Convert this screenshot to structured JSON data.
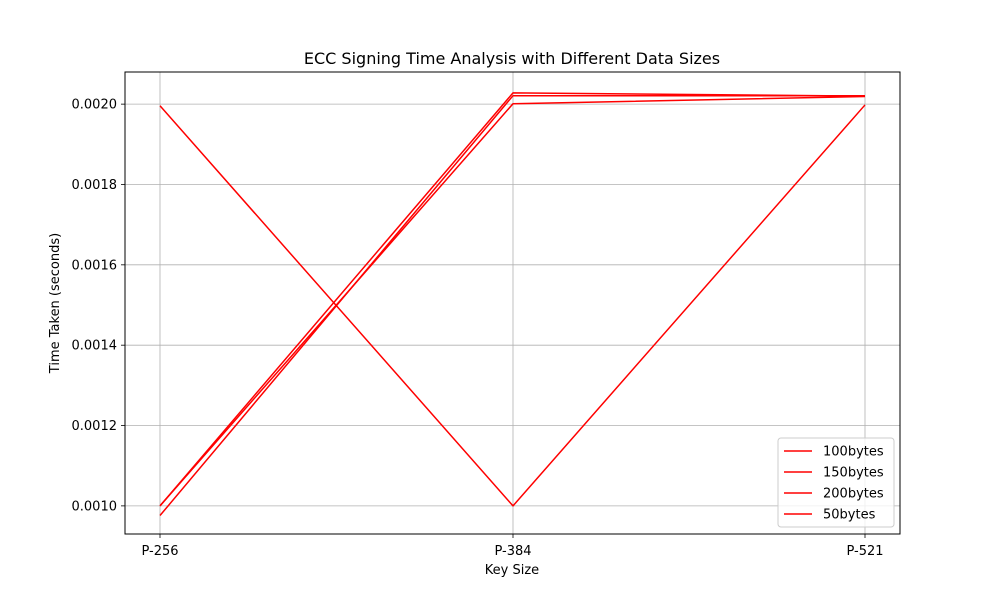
{
  "chart_data": {
    "type": "line",
    "title": "ECC Signing Time Analysis with Different Data Sizes",
    "xlabel": "Key Size",
    "ylabel": "Time Taken (seconds)",
    "categories": [
      "P-256",
      "P-384",
      "P-521"
    ],
    "ylim": [
      0.00093,
      0.00208
    ],
    "yticks": [
      0.001,
      0.0012,
      0.0014,
      0.0016,
      0.0018,
      0.002
    ],
    "ytick_labels": [
      "0.0010",
      "0.0012",
      "0.0014",
      "0.0016",
      "0.0018",
      "0.0020"
    ],
    "grid": true,
    "legend_position": "lower-right",
    "series": [
      {
        "name": "100bytes",
        "color": "#ff0000",
        "values": [
          0.001,
          0.002028,
          0.00202
        ]
      },
      {
        "name": "150bytes",
        "color": "#ff0000",
        "values": [
          0.000976,
          0.002021,
          0.002021
        ]
      },
      {
        "name": "200bytes",
        "color": "#ff0000",
        "values": [
          0.001,
          0.002001,
          0.002019
        ]
      },
      {
        "name": "50bytes",
        "color": "#ff0000",
        "values": [
          0.001996,
          0.001,
          0.001998
        ]
      }
    ]
  }
}
